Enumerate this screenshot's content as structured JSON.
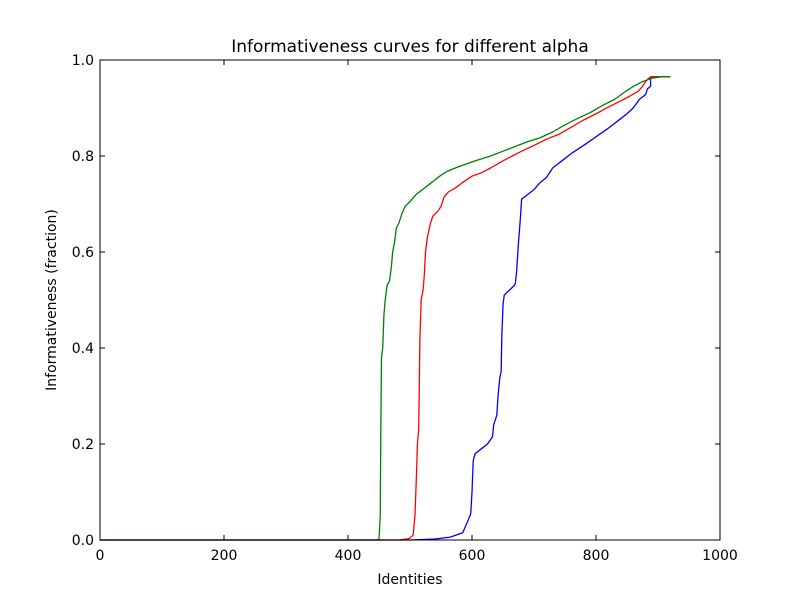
{
  "chart_data": {
    "type": "line",
    "title": "Informativeness curves for different alpha",
    "xlabel": "Identities",
    "ylabel": "Informativeness (fraction)",
    "xlim": [
      0,
      1000
    ],
    "ylim": [
      0,
      1.0
    ],
    "xticks": [
      0,
      200,
      400,
      600,
      800,
      1000
    ],
    "xtick_labels": [
      "0",
      "200",
      "400",
      "600",
      "800",
      "1000"
    ],
    "yticks": [
      0.0,
      0.2,
      0.4,
      0.6,
      0.8,
      1.0
    ],
    "ytick_labels": [
      "0.0",
      "0.2",
      "0.4",
      "0.6",
      "0.8",
      "1.0"
    ],
    "grid": false,
    "legend": "none",
    "series": [
      {
        "color": "#0000ff",
        "points": [
          [
            0,
            0
          ],
          [
            500,
            0
          ],
          [
            540,
            0.002
          ],
          [
            565,
            0.006
          ],
          [
            585,
            0.015
          ],
          [
            590,
            0.03
          ],
          [
            595,
            0.045
          ],
          [
            598,
            0.055
          ],
          [
            600,
            0.1
          ],
          [
            602,
            0.165
          ],
          [
            605,
            0.18
          ],
          [
            615,
            0.19
          ],
          [
            625,
            0.2
          ],
          [
            633,
            0.215
          ],
          [
            635,
            0.24
          ],
          [
            640,
            0.26
          ],
          [
            642,
            0.3
          ],
          [
            645,
            0.34
          ],
          [
            647,
            0.35
          ],
          [
            648,
            0.42
          ],
          [
            650,
            0.49
          ],
          [
            652,
            0.51
          ],
          [
            660,
            0.52
          ],
          [
            668,
            0.53
          ],
          [
            670,
            0.535
          ],
          [
            672,
            0.56
          ],
          [
            675,
            0.62
          ],
          [
            678,
            0.67
          ],
          [
            680,
            0.71
          ],
          [
            690,
            0.72
          ],
          [
            700,
            0.73
          ],
          [
            710,
            0.745
          ],
          [
            720,
            0.755
          ],
          [
            730,
            0.775
          ],
          [
            745,
            0.79
          ],
          [
            760,
            0.805
          ],
          [
            780,
            0.822
          ],
          [
            800,
            0.84
          ],
          [
            820,
            0.858
          ],
          [
            840,
            0.878
          ],
          [
            850,
            0.888
          ],
          [
            860,
            0.9
          ],
          [
            870,
            0.918
          ],
          [
            880,
            0.928
          ],
          [
            883,
            0.94
          ],
          [
            888,
            0.945
          ],
          [
            888,
            0.965
          ],
          [
            920,
            0.965
          ]
        ]
      },
      {
        "color": "#ff0000",
        "points": [
          [
            0,
            0
          ],
          [
            480,
            0
          ],
          [
            495,
            0.002
          ],
          [
            500,
            0.004
          ],
          [
            505,
            0.01
          ],
          [
            508,
            0.05
          ],
          [
            510,
            0.12
          ],
          [
            512,
            0.2
          ],
          [
            514,
            0.23
          ],
          [
            516,
            0.42
          ],
          [
            518,
            0.5
          ],
          [
            521,
            0.52
          ],
          [
            523,
            0.55
          ],
          [
            525,
            0.6
          ],
          [
            528,
            0.63
          ],
          [
            533,
            0.66
          ],
          [
            537,
            0.675
          ],
          [
            545,
            0.685
          ],
          [
            550,
            0.695
          ],
          [
            555,
            0.715
          ],
          [
            562,
            0.725
          ],
          [
            575,
            0.735
          ],
          [
            585,
            0.745
          ],
          [
            600,
            0.758
          ],
          [
            615,
            0.765
          ],
          [
            630,
            0.775
          ],
          [
            650,
            0.79
          ],
          [
            665,
            0.8
          ],
          [
            680,
            0.81
          ],
          [
            700,
            0.822
          ],
          [
            720,
            0.835
          ],
          [
            740,
            0.845
          ],
          [
            760,
            0.86
          ],
          [
            780,
            0.875
          ],
          [
            800,
            0.888
          ],
          [
            820,
            0.902
          ],
          [
            840,
            0.915
          ],
          [
            855,
            0.925
          ],
          [
            868,
            0.935
          ],
          [
            875,
            0.945
          ],
          [
            880,
            0.955
          ],
          [
            885,
            0.962
          ],
          [
            890,
            0.965
          ],
          [
            920,
            0.965
          ]
        ]
      },
      {
        "color": "#008000",
        "points": [
          [
            0,
            0
          ],
          [
            445,
            0
          ],
          [
            450,
            0.002
          ],
          [
            452,
            0.05
          ],
          [
            453,
            0.24
          ],
          [
            454,
            0.38
          ],
          [
            456,
            0.4
          ],
          [
            458,
            0.47
          ],
          [
            460,
            0.5
          ],
          [
            463,
            0.53
          ],
          [
            467,
            0.54
          ],
          [
            470,
            0.57
          ],
          [
            472,
            0.6
          ],
          [
            475,
            0.62
          ],
          [
            478,
            0.65
          ],
          [
            482,
            0.66
          ],
          [
            487,
            0.68
          ],
          [
            492,
            0.695
          ],
          [
            500,
            0.705
          ],
          [
            510,
            0.72
          ],
          [
            520,
            0.73
          ],
          [
            530,
            0.74
          ],
          [
            540,
            0.75
          ],
          [
            550,
            0.76
          ],
          [
            560,
            0.768
          ],
          [
            575,
            0.776
          ],
          [
            590,
            0.783
          ],
          [
            610,
            0.792
          ],
          [
            630,
            0.8
          ],
          [
            650,
            0.81
          ],
          [
            670,
            0.82
          ],
          [
            690,
            0.83
          ],
          [
            710,
            0.838
          ],
          [
            730,
            0.85
          ],
          [
            750,
            0.865
          ],
          [
            770,
            0.878
          ],
          [
            790,
            0.89
          ],
          [
            810,
            0.905
          ],
          [
            830,
            0.918
          ],
          [
            845,
            0.932
          ],
          [
            860,
            0.945
          ],
          [
            875,
            0.955
          ],
          [
            890,
            0.962
          ],
          [
            905,
            0.965
          ],
          [
            920,
            0.965
          ]
        ]
      }
    ]
  }
}
